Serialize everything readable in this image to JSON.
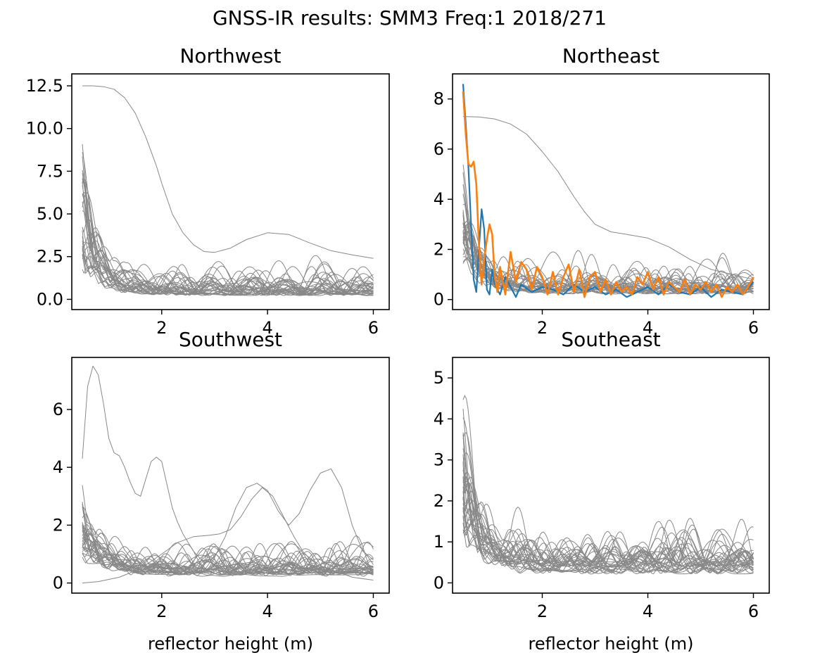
{
  "figure_title": "GNSS-IR results: SMM3 Freq:1 2018/271",
  "colors": {
    "background": "#ffffff",
    "axes": "#000000",
    "grey_track": "#888888",
    "highlight_1": "#1f77b4",
    "highlight_2": "#ff7f0e"
  },
  "chart_data": [
    {
      "type": "line",
      "title": "Northwest",
      "xlabel": "",
      "ylabel": "",
      "xlim": [
        0.3,
        6.3
      ],
      "ylim": [
        -0.6,
        13.2
      ],
      "xticks": [
        2,
        4,
        6
      ],
      "xtick_labels": [
        "2",
        "4",
        "6"
      ],
      "yticks": [
        0,
        2.5,
        5,
        7.5,
        10,
        12.5
      ],
      "ytick_labels": [
        "0.0",
        "2.5",
        "5.0",
        "7.5",
        "10.0",
        "12.5"
      ],
      "grid": false,
      "x_range": [
        0.5,
        6.0
      ],
      "series": [
        {
          "color": "#888888",
          "width": 1,
          "x": [
            0.5,
            0.7,
            0.9,
            1.1,
            1.3,
            1.5,
            1.7,
            1.9,
            2.0,
            2.2,
            2.4,
            2.6,
            2.8,
            3.0,
            3.3,
            3.6,
            4.0,
            4.4,
            4.8,
            5.2,
            5.6,
            6.0
          ],
          "y": [
            12.5,
            12.5,
            12.45,
            12.3,
            11.8,
            10.9,
            9.5,
            7.8,
            6.8,
            5.0,
            3.9,
            3.2,
            2.8,
            2.75,
            3.0,
            3.5,
            3.9,
            3.8,
            3.3,
            2.85,
            2.6,
            2.4
          ]
        }
      ],
      "grey_tracks": {
        "count": 30,
        "peak_scale": 2.4,
        "start_scale": 8.5,
        "seed": 11
      }
    },
    {
      "type": "line",
      "title": "Northeast",
      "xlabel": "",
      "ylabel": "",
      "xlim": [
        0.3,
        6.3
      ],
      "ylim": [
        -0.4,
        9.0
      ],
      "xticks": [
        2,
        4,
        6
      ],
      "xtick_labels": [
        "2",
        "4",
        "6"
      ],
      "yticks": [
        0,
        2,
        4,
        6,
        8
      ],
      "ytick_labels": [
        "0",
        "2",
        "4",
        "6",
        "8"
      ],
      "grid": false,
      "x_range": [
        0.5,
        6.0
      ],
      "series": [
        {
          "color": "#888888",
          "width": 1,
          "x": [
            0.5,
            0.8,
            1.1,
            1.4,
            1.7,
            2.0,
            2.3,
            2.6,
            2.8,
            3.0,
            3.3,
            3.6,
            4.0,
            4.4,
            4.8,
            5.2,
            5.6,
            6.0
          ],
          "y": [
            7.3,
            7.28,
            7.2,
            7.0,
            6.6,
            5.9,
            5.1,
            4.1,
            3.5,
            3.0,
            2.7,
            2.6,
            2.45,
            2.1,
            1.6,
            1.2,
            1.0,
            0.8
          ]
        },
        {
          "color": "#1f77b4",
          "width": 2.2,
          "x": [
            0.5,
            0.55,
            0.6,
            0.65,
            0.7,
            0.75,
            0.8,
            0.85,
            0.9,
            0.95,
            1.0,
            1.05,
            1.1,
            1.2,
            1.3,
            1.4,
            1.5,
            1.6,
            1.8,
            2.0,
            2.2,
            2.4,
            2.6,
            2.8,
            3.0,
            3.2,
            3.4,
            3.6,
            3.8,
            4.0,
            4.2,
            4.4,
            4.6,
            4.8,
            5.0,
            5.2,
            5.4,
            5.6,
            5.8,
            6.0
          ],
          "y": [
            8.6,
            7.0,
            5.3,
            3.0,
            0.8,
            0.3,
            2.0,
            3.6,
            2.8,
            0.4,
            0.2,
            1.2,
            0.6,
            0.2,
            0.9,
            0.5,
            0.1,
            0.6,
            0.3,
            0.5,
            0.4,
            0.2,
            0.6,
            0.3,
            0.5,
            0.2,
            0.4,
            0.1,
            0.3,
            0.5,
            0.2,
            0.6,
            0.3,
            0.2,
            0.5,
            0.1,
            0.4,
            0.3,
            0.2,
            0.7
          ]
        },
        {
          "color": "#ff7f0e",
          "width": 2.6,
          "x": [
            0.5,
            0.55,
            0.6,
            0.65,
            0.7,
            0.75,
            0.8,
            0.85,
            0.9,
            0.95,
            1.0,
            1.05,
            1.1,
            1.15,
            1.2,
            1.3,
            1.4,
            1.5,
            1.6,
            1.7,
            1.8,
            1.9,
            2.0,
            2.1,
            2.2,
            2.3,
            2.4,
            2.5,
            2.6,
            2.7,
            2.8,
            2.9,
            3.0,
            3.1,
            3.2,
            3.3,
            3.4,
            3.5,
            3.6,
            3.7,
            3.8,
            3.9,
            4.0,
            4.1,
            4.2,
            4.3,
            4.4,
            4.5,
            4.6,
            4.7,
            4.8,
            4.9,
            5.0,
            5.1,
            5.2,
            5.3,
            5.4,
            5.5,
            5.6,
            5.7,
            5.8,
            5.9,
            6.0
          ],
          "y": [
            8.3,
            6.6,
            5.4,
            5.3,
            5.5,
            4.6,
            2.2,
            0.6,
            1.6,
            2.4,
            3.0,
            2.6,
            0.9,
            0.3,
            1.3,
            0.2,
            1.9,
            0.7,
            1.5,
            1.2,
            0.4,
            1.3,
            0.9,
            0.2,
            1.1,
            0.2,
            0.9,
            1.4,
            0.3,
            1.2,
            0.1,
            0.9,
            1.1,
            0.3,
            0.8,
            0.2,
            0.7,
            0.3,
            0.5,
            0.2,
            0.9,
            0.6,
            1.1,
            0.4,
            0.9,
            0.2,
            0.7,
            0.5,
            0.3,
            0.8,
            0.2,
            0.6,
            0.4,
            0.7,
            0.3,
            0.6,
            0.1,
            0.5,
            0.3,
            0.6,
            0.2,
            0.5,
            0.9
          ]
        }
      ],
      "grey_tracks": {
        "count": 30,
        "peak_scale": 1.9,
        "start_scale": 4.8,
        "seed": 23
      }
    },
    {
      "type": "line",
      "title": "Southwest",
      "xlabel": "reflector height (m)",
      "ylabel": "",
      "xlim": [
        0.3,
        6.3
      ],
      "ylim": [
        -0.35,
        7.8
      ],
      "xticks": [
        2,
        4,
        6
      ],
      "xtick_labels": [
        "2",
        "4",
        "6"
      ],
      "yticks": [
        0,
        2,
        4,
        6
      ],
      "ytick_labels": [
        "0",
        "2",
        "4",
        "6"
      ],
      "grid": false,
      "x_range": [
        0.5,
        6.0
      ],
      "series": [
        {
          "color": "#888888",
          "width": 1,
          "x": [
            0.5,
            0.6,
            0.7,
            0.8,
            0.9,
            1.0,
            1.1,
            1.2,
            1.3,
            1.4,
            1.5,
            1.6,
            1.7,
            1.8,
            1.9,
            2.0,
            2.1,
            2.2,
            2.3,
            2.4,
            2.5,
            2.6,
            2.7,
            2.8,
            3.0,
            3.2,
            3.4,
            3.6,
            3.8,
            4.0,
            4.2,
            4.4,
            4.6,
            4.8,
            5.0,
            5.2,
            5.4,
            5.6,
            5.8,
            6.0
          ],
          "y": [
            4.3,
            6.8,
            7.5,
            7.2,
            6.2,
            5.0,
            4.5,
            4.4,
            4.0,
            3.5,
            3.1,
            3.0,
            3.6,
            4.2,
            4.35,
            4.2,
            3.4,
            2.6,
            2.1,
            1.7,
            1.4,
            1.1,
            0.9,
            0.7,
            0.9,
            1.6,
            2.6,
            3.3,
            3.45,
            3.2,
            2.5,
            2.0,
            2.4,
            3.2,
            3.8,
            3.95,
            3.3,
            2.0,
            1.1,
            0.8
          ]
        },
        {
          "color": "#888888",
          "width": 1,
          "x": [
            0.5,
            0.8,
            1.2,
            1.6,
            2.0,
            2.3,
            2.6,
            2.9,
            3.1,
            3.3,
            3.5,
            3.7,
            3.9,
            4.1,
            4.3,
            4.5,
            4.7,
            5.0,
            5.3,
            5.6,
            6.0
          ],
          "y": [
            0.0,
            0.05,
            0.2,
            0.5,
            1.0,
            1.4,
            1.6,
            1.65,
            1.7,
            1.85,
            2.3,
            2.9,
            3.3,
            3.0,
            2.3,
            1.6,
            1.0,
            0.6,
            0.4,
            0.2,
            0.1
          ]
        }
      ],
      "grey_tracks": {
        "count": 30,
        "peak_scale": 1.55,
        "start_scale": 2.6,
        "seed": 37
      }
    },
    {
      "type": "line",
      "title": "Southeast",
      "xlabel": "reflector height (m)",
      "ylabel": "",
      "xlim": [
        0.3,
        6.3
      ],
      "ylim": [
        -0.25,
        5.5
      ],
      "xticks": [
        2,
        4,
        6
      ],
      "xtick_labels": [
        "2",
        "4",
        "6"
      ],
      "yticks": [
        0,
        1,
        2,
        3,
        4,
        5
      ],
      "ytick_labels": [
        "0",
        "1",
        "2",
        "3",
        "4",
        "5"
      ],
      "grid": false,
      "x_range": [
        0.5,
        6.0
      ],
      "series": [],
      "grey_tracks": {
        "count": 32,
        "peak_scale": 1.6,
        "start_scale": 4.2,
        "seed": 53
      }
    }
  ]
}
